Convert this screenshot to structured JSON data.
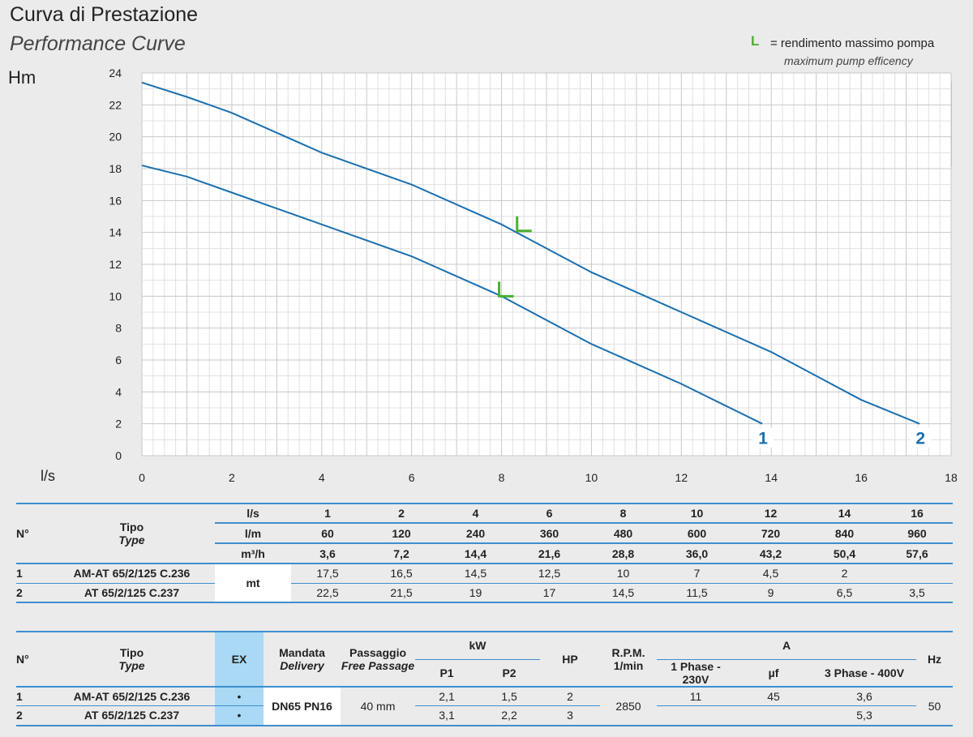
{
  "header": {
    "title": "Curva di Prestazione",
    "subtitle": "Performance Curve",
    "legend_symbol": "L",
    "legend_text": "= rendimento massimo pompa",
    "legend_text_en": "maximum pump efficency"
  },
  "chart_data": {
    "type": "line",
    "ylabel": "Hm",
    "xlabel": "l/s",
    "xlim": [
      0,
      18
    ],
    "ylim": [
      0,
      24
    ],
    "x_ticks": [
      "0",
      "2",
      "4",
      "6",
      "8",
      "10",
      "12",
      "14",
      "16",
      "18"
    ],
    "y_ticks": [
      "0",
      "2",
      "4",
      "6",
      "8",
      "10",
      "12",
      "14",
      "16",
      "18",
      "20",
      "22",
      "24"
    ],
    "grid": true,
    "series": [
      {
        "name": "1",
        "color": "#1a6fb0",
        "x": [
          0,
          1,
          2,
          4,
          6,
          8,
          10,
          12,
          13.8
        ],
        "y": [
          18.2,
          17.5,
          16.5,
          14.5,
          12.5,
          10,
          7,
          4.5,
          2
        ]
      },
      {
        "name": "2",
        "color": "#1a6fb0",
        "x": [
          0,
          1,
          2,
          4,
          6,
          8,
          10,
          12,
          14,
          16,
          17.3
        ],
        "y": [
          23.4,
          22.5,
          21.5,
          19,
          17,
          14.5,
          11.5,
          9,
          6.5,
          3.5,
          2
        ]
      }
    ],
    "max_efficiency_markers": [
      {
        "series": "1",
        "x": 8.0,
        "y": 10.0
      },
      {
        "series": "2",
        "x": 8.4,
        "y": 14.1
      }
    ],
    "marker_color": "#4caf32"
  },
  "table1": {
    "n_header": "N°",
    "tipo": "Tipo",
    "type": "Type",
    "row_labels": [
      "l/s",
      "l/m",
      "m³/h"
    ],
    "flow_ls": [
      "1",
      "2",
      "4",
      "6",
      "8",
      "10",
      "12",
      "14",
      "16"
    ],
    "flow_lm": [
      "60",
      "120",
      "240",
      "360",
      "480",
      "600",
      "720",
      "840",
      "960"
    ],
    "flow_m3h": [
      "3,6",
      "7,2",
      "14,4",
      "21,6",
      "28,8",
      "36,0",
      "43,2",
      "50,4",
      "57,6"
    ],
    "unit": "mt",
    "rows": [
      {
        "n": "1",
        "model": "AM-AT 65/2/125 C.236",
        "values": [
          "17,5",
          "16,5",
          "14,5",
          "12,5",
          "10",
          "7",
          "4,5",
          "2",
          ""
        ]
      },
      {
        "n": "2",
        "model": "AT 65/2/125 C.237",
        "values": [
          "22,5",
          "21,5",
          "19",
          "17",
          "14,5",
          "11,5",
          "9",
          "6,5",
          "3,5"
        ]
      }
    ]
  },
  "table2": {
    "n_header": "N°",
    "tipo": "Tipo",
    "type": "Type",
    "ex": "EX",
    "mandata": "Mandata",
    "delivery": "Delivery",
    "passaggio": "Passaggio",
    "free_passage": "Free Passage",
    "kw": "kW",
    "p1": "P1",
    "p2": "P2",
    "hp": "HP",
    "rpm": "R.P.M.",
    "rpm_unit": "1/min",
    "a": "A",
    "phase1": "1 Phase - 230V",
    "uf": "µf",
    "phase3": "3 Phase - 400V",
    "hz": "Hz",
    "mandata_value": "DN65 PN16",
    "passage_value": "40 mm",
    "rpm_value": "2850",
    "hz_value": "50",
    "rows": [
      {
        "n": "1",
        "model": "AM-AT 65/2/125 C.236",
        "ex": "•",
        "p1": "2,1",
        "p2": "1,5",
        "hp": "2",
        "a1": "11",
        "uf": "45",
        "a3": "3,6"
      },
      {
        "n": "2",
        "model": "AT 65/2/125 C.237",
        "ex": "•",
        "p1": "3,1",
        "p2": "2,2",
        "hp": "3",
        "a1": "",
        "uf": "",
        "a3": "5,3"
      }
    ]
  }
}
